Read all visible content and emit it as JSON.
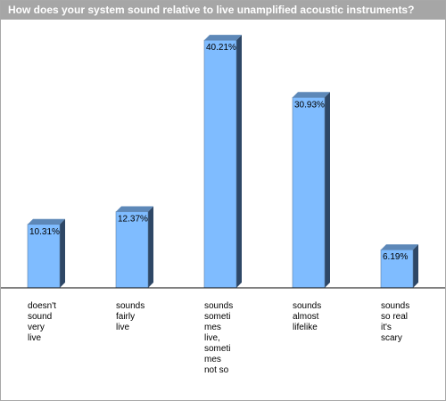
{
  "title": "How does your system sound relative to live unamplified acoustic instruments?",
  "colors": {
    "bar_front": "#7fbcff",
    "bar_side": "#2e4766",
    "bar_top": "#5d88b8",
    "title_bar": "#a6a6a6"
  },
  "chart_data": {
    "type": "bar",
    "title": "How does your system sound relative to live unamplified acoustic instruments?",
    "categories": [
      [
        "doesn't",
        "sound",
        "very",
        "live"
      ],
      [
        "sounds",
        "fairly",
        "live"
      ],
      [
        "sounds",
        "someti",
        "mes",
        "live,",
        "someti",
        "mes",
        "not so"
      ],
      [
        "sounds",
        "almost",
        "lifelike"
      ],
      [
        "sounds",
        "so real",
        "it's",
        "scary"
      ]
    ],
    "values": [
      10.31,
      12.37,
      40.21,
      30.93,
      6.19
    ],
    "value_labels": [
      "10.31%",
      "12.37%",
      "40.21%",
      "30.93%",
      "6.19%"
    ],
    "ylim": [
      0,
      45
    ],
    "grid": false,
    "legend": "none"
  }
}
